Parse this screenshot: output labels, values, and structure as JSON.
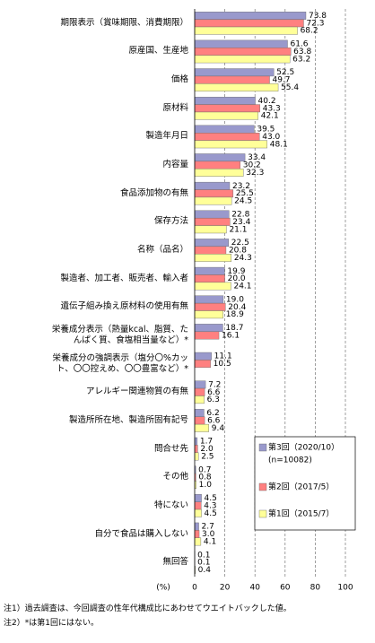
{
  "chart_data": {
    "type": "bar",
    "orientation": "horizontal",
    "categories": [
      "期限表示（賞味期限、消費期限）",
      "原産国、生産地",
      "価格",
      "原材料",
      "製造年月日",
      "内容量",
      "食品添加物の有無",
      "保存方法",
      "名称（品名）",
      "製造者、加工者、販売者、輸入者",
      "遺伝子組み換え原材料の使用有無",
      "栄養成分表示（熱量kcal、脂質、たんぱく質、食塩相当量など）*",
      "栄養成分の強調表示（塩分〇%カット、〇〇控えめ、〇〇豊富など）*",
      "アレルギー関連物質の有無",
      "製造所所在地、製造所固有記号",
      "問合せ先",
      "その他",
      "特にない",
      "自分で食品は購入しない",
      "無回答"
    ],
    "series": [
      {
        "name": "第3回（2020/10）",
        "sample": "(n=10082)",
        "color": "#9999cc",
        "values": [
          73.8,
          61.6,
          52.5,
          40.2,
          39.5,
          33.4,
          23.2,
          22.8,
          22.5,
          19.9,
          19.0,
          18.7,
          11.1,
          7.2,
          6.2,
          1.7,
          0.7,
          4.5,
          2.7,
          0.1
        ],
        "value_labels": [
          "73.8",
          "61.6",
          "52.5",
          "40.2",
          "39.5",
          "33.4",
          "23.2",
          "22.8",
          "22.5",
          "19.9",
          "19.0",
          "18.7",
          "11.1",
          "7.2",
          "6.2",
          "1.7",
          "0.7",
          "4.5",
          "2.7",
          "0.1"
        ]
      },
      {
        "name": "第2回（2017/5）",
        "color": "#ff8080",
        "values": [
          72.3,
          63.8,
          49.7,
          43.3,
          43.0,
          30.2,
          25.5,
          23.4,
          20.8,
          20.0,
          20.4,
          16.1,
          10.5,
          6.6,
          6.6,
          2.0,
          0.8,
          4.3,
          3.0,
          0.1
        ],
        "value_labels": [
          "72.3",
          "63.8",
          "49.7",
          "43.3",
          "43.0",
          "30.2",
          "25.5",
          "23.4",
          "20.8",
          "20.0",
          "20.4",
          "16.1",
          "10.5",
          "6.6",
          "6.6",
          "2.0",
          "0.8",
          "4.3",
          "3.0",
          "0.1"
        ]
      },
      {
        "name": "第1回（2015/7）",
        "color": "#ffff99",
        "values": [
          68.2,
          63.2,
          55.4,
          42.1,
          48.1,
          32.3,
          24.5,
          21.1,
          24.3,
          24.1,
          18.9,
          null,
          null,
          6.3,
          9.4,
          2.5,
          1.0,
          4.5,
          4.1,
          0.4
        ],
        "value_labels": [
          "68.2",
          "63.2",
          "55.4",
          "42.1",
          "48.1",
          "32.3",
          "24.5",
          "21.1",
          "24.3",
          "24.1",
          "18.9",
          null,
          null,
          "6.3",
          "9.4",
          "2.5",
          "1.0",
          "4.5",
          "4.1",
          "0.4"
        ]
      }
    ],
    "xlim": [
      0,
      100
    ],
    "xticks": [
      0,
      20,
      40,
      60,
      80,
      100
    ],
    "x_label": "(%)",
    "grid": true,
    "legend_position": "lower right",
    "notes": [
      "注1）過去調査は、今回調査の性年代構成比にあわせてウエイトバックした値。",
      "注2）*は第1回にはない。"
    ]
  }
}
